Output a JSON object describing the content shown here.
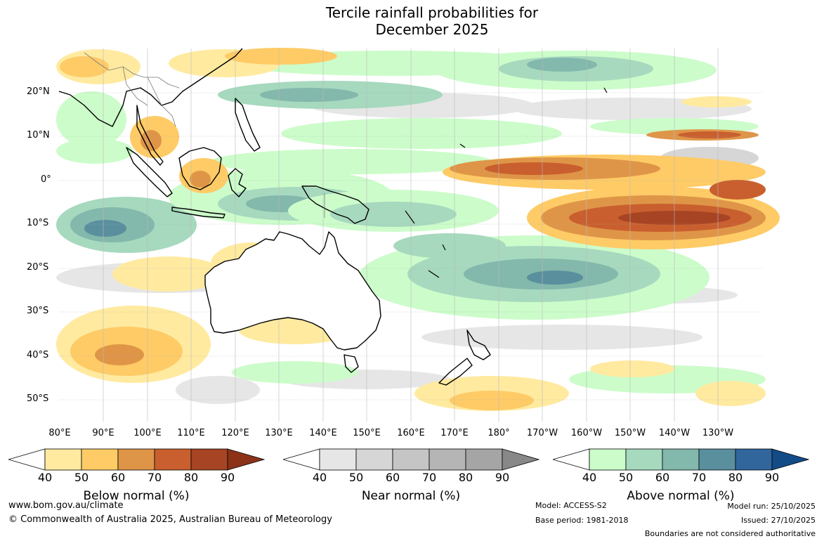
{
  "title": {
    "line1": "Tercile rainfall probabilities for",
    "line2": "December 2025"
  },
  "map": {
    "lat_labels": [
      "20°N",
      "10°N",
      "0°",
      "10°S",
      "20°S",
      "30°S",
      "40°S",
      "50°S"
    ],
    "lon_labels": [
      "80°E",
      "90°E",
      "100°E",
      "110°E",
      "120°E",
      "130°E",
      "140°E",
      "150°E",
      "160°E",
      "170°E",
      "180°",
      "170°W",
      "160°W",
      "150°W",
      "140°W",
      "130°W"
    ]
  },
  "legends": [
    {
      "label": "Below normal (%)",
      "ticks": [
        "40",
        "50",
        "60",
        "70",
        "80",
        "90"
      ],
      "colors": [
        "#ffeaa0",
        "#fecb66",
        "#df9547",
        "#c95f2e",
        "#a64424",
        "#8b3219"
      ]
    },
    {
      "label": "Near normal (%)",
      "ticks": [
        "40",
        "50",
        "60",
        "70",
        "80",
        "90"
      ],
      "colors": [
        "#e6e6e6",
        "#d6d6d6",
        "#c5c5c5",
        "#b5b5b5",
        "#a5a5a5",
        "#888888"
      ]
    },
    {
      "label": "Above normal (%)",
      "ticks": [
        "40",
        "50",
        "60",
        "70",
        "80",
        "90"
      ],
      "colors": [
        "#ccfcca",
        "#a6d9be",
        "#83b8ac",
        "#5a8f9e",
        "#31669c",
        "#134b87"
      ]
    }
  ],
  "footer": {
    "website": "www.bom.gov.au/climate",
    "copyright": "© Commonwealth of Australia 2025, Australian Bureau of Meteorology",
    "model": "Model: ACCESS-S2",
    "base_period": "Base period: 1981-2018",
    "model_run": "Model run: 25/10/2025",
    "issued": "Issued: 27/10/2025",
    "disclaimer": "Boundaries are not considered authoritative"
  }
}
